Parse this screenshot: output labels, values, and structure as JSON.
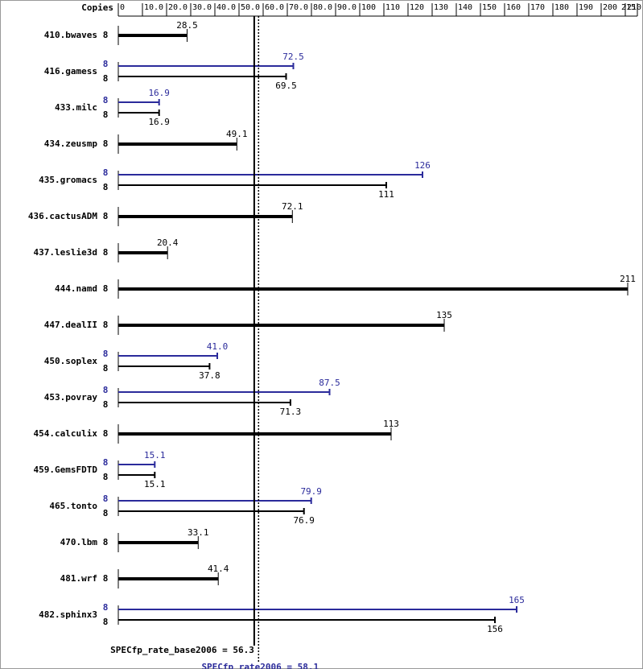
{
  "chart_data": {
    "type": "bar",
    "orientation": "horizontal",
    "copies_label": "Copies",
    "categories": [
      "410.bwaves",
      "416.gamess",
      "433.milc",
      "434.zeusmp",
      "435.gromacs",
      "436.cactusADM",
      "437.leslie3d",
      "444.namd",
      "447.dealII",
      "450.soplex",
      "453.povray",
      "454.calculix",
      "459.GemsFDTD",
      "465.tonto",
      "470.lbm",
      "481.wrf",
      "482.sphinx3"
    ],
    "series": [
      {
        "color": "#000000",
        "values": [
          28.5,
          69.5,
          16.9,
          49.1,
          111,
          72.1,
          20.4,
          211,
          135,
          37.8,
          71.3,
          113,
          15.1,
          76.9,
          33.1,
          41.4,
          156
        ],
        "value_labels": [
          "28.5",
          "69.5",
          "16.9",
          "49.1",
          "111",
          "72.1",
          "20.4",
          "211",
          "135",
          "37.8",
          "71.3",
          "113",
          "15.1",
          "76.9",
          "33.1",
          "41.4",
          "156"
        ],
        "copies": [
          8,
          8,
          8,
          8,
          8,
          8,
          8,
          8,
          8,
          8,
          8,
          8,
          8,
          8,
          8,
          8,
          8
        ]
      },
      {
        "color": "#2b2b9b",
        "values": [
          null,
          72.5,
          16.9,
          null,
          126,
          null,
          null,
          null,
          null,
          41.0,
          87.5,
          null,
          15.1,
          79.9,
          null,
          null,
          165
        ],
        "value_labels": [
          null,
          "72.5",
          "16.9",
          null,
          "126",
          null,
          null,
          null,
          null,
          "41.0",
          "87.5",
          null,
          "15.1",
          "79.9",
          null,
          null,
          "165"
        ],
        "copies": [
          null,
          8,
          8,
          null,
          8,
          null,
          null,
          null,
          null,
          8,
          8,
          null,
          8,
          8,
          null,
          null,
          8
        ]
      }
    ],
    "xlim": [
      0,
      215
    ],
    "xticks": [
      0,
      {
        "value": 10,
        "label": "10.0"
      },
      {
        "value": 20,
        "label": "20.0"
      },
      {
        "value": 30,
        "label": "30.0"
      },
      {
        "value": 40,
        "label": "40.0"
      },
      {
        "value": 50,
        "label": "50.0"
      },
      {
        "value": 60,
        "label": "60.0"
      },
      {
        "value": 70,
        "label": "70.0"
      },
      {
        "value": 80,
        "label": "80.0"
      },
      {
        "value": 90,
        "label": "90.0"
      },
      100,
      110,
      120,
      130,
      140,
      150,
      160,
      170,
      180,
      190,
      200,
      210,
      215
    ],
    "reference_lines": [
      {
        "label": "SPECfp_rate_base2006 = 56.3",
        "value": 56.3,
        "color": "#000000",
        "style": "solid"
      },
      {
        "label": "SPECfp_rate2006 = 58.1",
        "value": 58.1,
        "color": "#2b2b9b",
        "style": "dotted"
      }
    ]
  }
}
